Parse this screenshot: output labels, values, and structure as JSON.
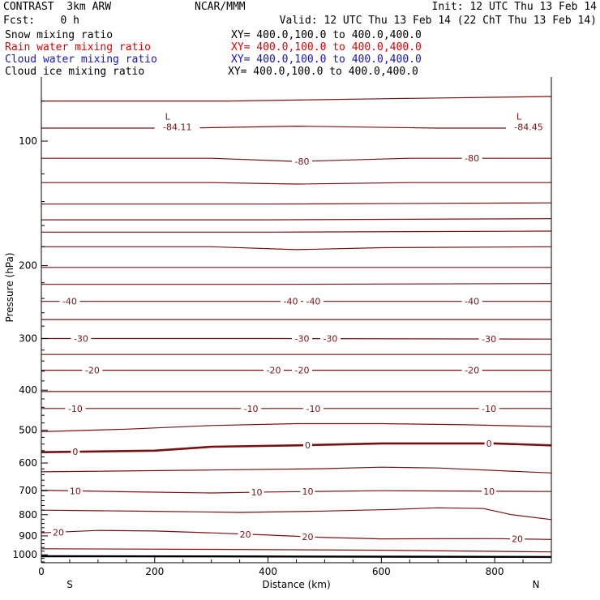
{
  "header": {
    "model": "CONTRAST  3km ARW",
    "center": "NCAR/MMM",
    "init": "Init: 12 UTC Thu 13 Feb 14",
    "fcst": "Fcst:    0 h",
    "valid": "Valid: 12 UTC Thu 13 Feb 14 (22 ChT Thu 13 Feb 14)",
    "fields": [
      {
        "name": "Snow mixing ratio",
        "xy": "XY= 400.0,100.0 to 400.0,400.0",
        "color": "#000000"
      },
      {
        "name": "Rain water mixing ratio",
        "xy": "XY= 400.0,100.0 to 400.0,400.0",
        "color": "#e00000"
      },
      {
        "name": "Cloud water mixing ratio",
        "xy": "XY= 400.0,100.0 to 400.0,400.0",
        "color": "#1414c8"
      },
      {
        "name": "Cloud ice mixing ratio",
        "xy": "XY= 400.0,100.0 to 400.0,400.0",
        "color": "#000000"
      }
    ]
  },
  "chart_data": {
    "type": "contour-cross-section",
    "xlabel": "Distance (km)",
    "ylabel": "Pressure (hPa)",
    "xlim": [
      0,
      900
    ],
    "ylim_log": [
      70,
      1045
    ],
    "xticks": [
      0,
      200,
      400,
      600,
      800
    ],
    "yticks": [
      100,
      200,
      300,
      400,
      500,
      600,
      700,
      800,
      900,
      1000
    ],
    "end_labels": {
      "left": "S",
      "right": "N"
    },
    "contour_color": "#7a1010",
    "lows": [
      {
        "label": "L",
        "value": "-84.11",
        "x": 240,
        "p": 88
      },
      {
        "label": "L",
        "value": "-84.45",
        "x": 860,
        "p": 88
      }
    ],
    "contours": [
      {
        "points": [
          [
            0,
            80
          ],
          [
            330,
            80
          ],
          [
            600,
            79
          ],
          [
            900,
            78
          ]
        ],
        "labels": []
      },
      {
        "points": [
          [
            0,
            93
          ],
          [
            250,
            93
          ],
          [
            450,
            92
          ],
          [
            700,
            93
          ],
          [
            900,
            93
          ]
        ],
        "labels": []
      },
      {
        "points": [
          [
            0,
            110
          ],
          [
            300,
            110
          ],
          [
            450,
            112
          ],
          [
            650,
            110
          ],
          [
            900,
            110
          ]
        ],
        "labels": [
          {
            "text": "-80",
            "x": 460
          },
          {
            "text": "-80",
            "x": 760
          }
        ]
      },
      {
        "points": [
          [
            0,
            126
          ],
          [
            300,
            126
          ],
          [
            450,
            127
          ],
          [
            650,
            126
          ],
          [
            900,
            126
          ]
        ],
        "labels": []
      },
      {
        "points": [
          [
            0,
            142
          ],
          [
            400,
            142
          ],
          [
            900,
            141
          ]
        ],
        "labels": []
      },
      {
        "points": [
          [
            0,
            155
          ],
          [
            400,
            155
          ],
          [
            900,
            154
          ]
        ],
        "labels": []
      },
      {
        "points": [
          [
            0,
            166
          ],
          [
            400,
            166
          ],
          [
            900,
            165
          ]
        ],
        "labels": []
      },
      {
        "points": [
          [
            0,
            180
          ],
          [
            300,
            180
          ],
          [
            450,
            183
          ],
          [
            600,
            181
          ],
          [
            900,
            180
          ]
        ],
        "labels": []
      },
      {
        "points": [
          [
            0,
            202
          ],
          [
            400,
            202
          ],
          [
            900,
            202
          ]
        ],
        "labels": []
      },
      {
        "points": [
          [
            0,
            222
          ],
          [
            400,
            222
          ],
          [
            900,
            221
          ]
        ],
        "labels": []
      },
      {
        "points": [
          [
            0,
            244
          ],
          [
            400,
            244
          ],
          [
            900,
            244
          ]
        ],
        "labels": [
          {
            "text": "-40",
            "x": 50
          },
          {
            "text": "-40",
            "x": 440
          },
          {
            "text": "-40",
            "x": 480
          },
          {
            "text": "-40",
            "x": 760
          }
        ]
      },
      {
        "points": [
          [
            0,
            270
          ],
          [
            400,
            270
          ],
          [
            900,
            270
          ]
        ],
        "labels": []
      },
      {
        "points": [
          [
            0,
            300
          ],
          [
            400,
            300
          ],
          [
            900,
            301
          ]
        ],
        "labels": [
          {
            "text": "-30",
            "x": 70
          },
          {
            "text": "-30",
            "x": 460
          },
          {
            "text": "-30",
            "x": 510
          },
          {
            "text": "-30",
            "x": 790
          }
        ]
      },
      {
        "points": [
          [
            0,
            328
          ],
          [
            400,
            328
          ],
          [
            900,
            328
          ]
        ],
        "labels": []
      },
      {
        "points": [
          [
            0,
            358
          ],
          [
            400,
            358
          ],
          [
            900,
            358
          ]
        ],
        "labels": [
          {
            "text": "-20",
            "x": 90
          },
          {
            "text": "-20",
            "x": 410
          },
          {
            "text": "-20",
            "x": 460
          },
          {
            "text": "-20",
            "x": 760
          }
        ]
      },
      {
        "points": [
          [
            0,
            403
          ],
          [
            400,
            403
          ],
          [
            900,
            403
          ]
        ],
        "labels": []
      },
      {
        "points": [
          [
            0,
            443
          ],
          [
            400,
            443
          ],
          [
            900,
            443
          ]
        ],
        "labels": [
          {
            "text": "-10",
            "x": 60
          },
          {
            "text": "-10",
            "x": 370
          },
          {
            "text": "-10",
            "x": 480
          },
          {
            "text": "-10",
            "x": 790
          }
        ]
      },
      {
        "points": [
          [
            0,
            504
          ],
          [
            150,
            497
          ],
          [
            300,
            487
          ],
          [
            450,
            482
          ],
          [
            600,
            482
          ],
          [
            750,
            485
          ],
          [
            900,
            490
          ]
        ],
        "labels": []
      },
      {
        "points": [
          [
            0,
            565
          ],
          [
            200,
            560
          ],
          [
            300,
            548
          ],
          [
            450,
            544
          ],
          [
            600,
            538
          ],
          [
            800,
            538
          ],
          [
            900,
            544
          ]
        ],
        "labels": [
          {
            "text": "0",
            "x": 60
          },
          {
            "text": "0",
            "x": 470
          },
          {
            "text": "0",
            "x": 790
          }
        ],
        "bold": true
      },
      {
        "points": [
          [
            0,
            630
          ],
          [
            300,
            624
          ],
          [
            500,
            619
          ],
          [
            600,
            614
          ],
          [
            700,
            617
          ],
          [
            900,
            634
          ]
        ],
        "labels": []
      },
      {
        "points": [
          [
            0,
            698
          ],
          [
            150,
            704
          ],
          [
            300,
            709
          ],
          [
            400,
            705
          ],
          [
            600,
            700
          ],
          [
            900,
            703
          ]
        ],
        "labels": [
          {
            "text": "10",
            "x": 60
          },
          {
            "text": "10",
            "x": 380
          },
          {
            "text": "10",
            "x": 470
          },
          {
            "text": "10",
            "x": 790
          }
        ]
      },
      {
        "points": [
          [
            0,
            780
          ],
          [
            200,
            785
          ],
          [
            350,
            790
          ],
          [
            500,
            784
          ],
          [
            620,
            777
          ],
          [
            700,
            770
          ],
          [
            780,
            773
          ],
          [
            830,
            800
          ],
          [
            900,
            822
          ]
        ],
        "labels": []
      },
      {
        "points": [
          [
            0,
            885
          ],
          [
            100,
            873
          ],
          [
            200,
            876
          ],
          [
            300,
            885
          ],
          [
            400,
            896
          ],
          [
            500,
            908
          ],
          [
            600,
            915
          ],
          [
            800,
            914
          ],
          [
            900,
            918
          ]
        ],
        "labels": [
          {
            "text": "20",
            "x": 30
          },
          {
            "text": "20",
            "x": 360
          },
          {
            "text": "20",
            "x": 470
          },
          {
            "text": "20",
            "x": 840
          }
        ]
      },
      {
        "points": [
          [
            0,
            967
          ],
          [
            300,
            970
          ],
          [
            600,
            975
          ],
          [
            900,
            984
          ]
        ],
        "labels": []
      }
    ],
    "surface": {
      "points": [
        [
          0,
          1008
        ],
        [
          300,
          1009
        ],
        [
          900,
          1012
        ]
      ]
    }
  }
}
